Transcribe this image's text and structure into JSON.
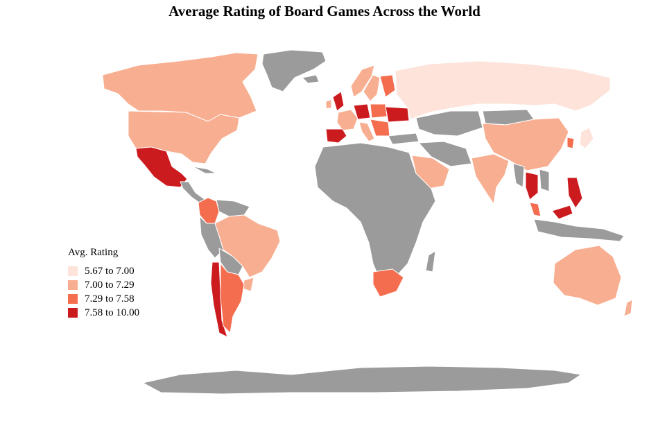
{
  "title": "Average Rating of Board Games Across the World",
  "colors": {
    "no_data": "#9b9b9b",
    "border": "#ffffff",
    "bin1": "#fde3da",
    "bin2": "#f8ae91",
    "bin3": "#f56d4f",
    "bin4": "#cc1b1f"
  },
  "legend": {
    "title": "Avg. Rating",
    "bins": [
      {
        "label": "5.67 to 7.00",
        "color": "#fde3da"
      },
      {
        "label": "7.00 to 7.29",
        "color": "#f8ae91"
      },
      {
        "label": "7.29 to 7.58",
        "color": "#f56d4f"
      },
      {
        "label": "7.58 to 10.00",
        "color": "#cc1b1f"
      }
    ]
  }
}
